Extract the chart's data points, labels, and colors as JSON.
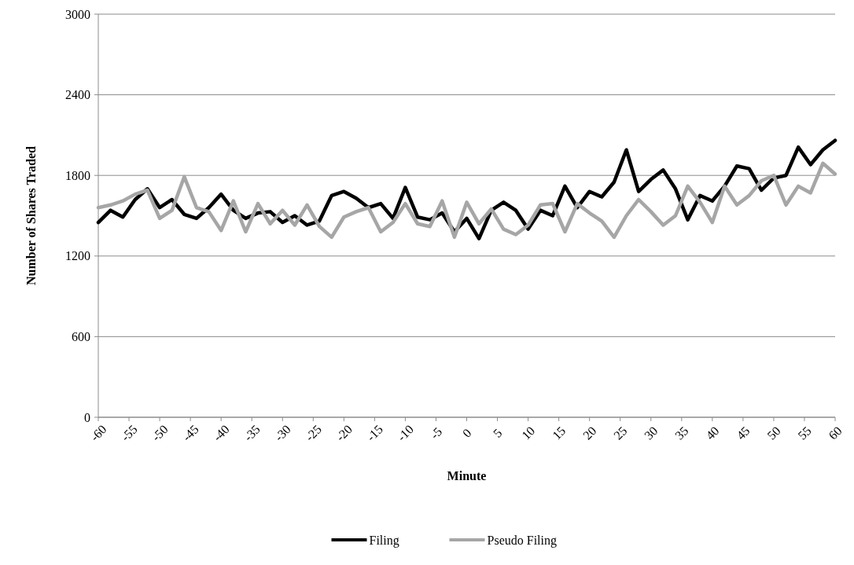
{
  "chart_data": {
    "type": "line",
    "xlabel": "Minute",
    "ylabel": "Number of Shares Traded",
    "x": [
      -60,
      -58,
      -56,
      -54,
      -52,
      -50,
      -48,
      -46,
      -44,
      -42,
      -40,
      -38,
      -36,
      -34,
      -32,
      -30,
      -28,
      -26,
      -24,
      -22,
      -20,
      -18,
      -16,
      -14,
      -12,
      -10,
      -8,
      -6,
      -4,
      -2,
      0,
      2,
      4,
      6,
      8,
      10,
      12,
      14,
      16,
      18,
      20,
      22,
      24,
      26,
      28,
      30,
      32,
      34,
      36,
      38,
      40,
      42,
      44,
      46,
      48,
      50,
      52,
      54,
      56,
      58,
      60
    ],
    "series": [
      {
        "name": "Filing",
        "color": "#000000",
        "values": [
          1450,
          1540,
          1490,
          1620,
          1700,
          1560,
          1620,
          1510,
          1480,
          1560,
          1660,
          1540,
          1480,
          1520,
          1530,
          1450,
          1500,
          1430,
          1460,
          1650,
          1680,
          1630,
          1560,
          1590,
          1480,
          1710,
          1490,
          1470,
          1520,
          1380,
          1480,
          1330,
          1540,
          1600,
          1540,
          1400,
          1540,
          1500,
          1720,
          1560,
          1680,
          1640,
          1750,
          1990,
          1680,
          1770,
          1840,
          1700,
          1470,
          1650,
          1610,
          1720,
          1870,
          1850,
          1690,
          1780,
          1800,
          2010,
          1880,
          1990,
          2060
        ]
      },
      {
        "name": "Pseudo Filing",
        "color": "#a6a6a6",
        "values": [
          1560,
          1580,
          1610,
          1660,
          1690,
          1480,
          1540,
          1790,
          1560,
          1530,
          1390,
          1610,
          1380,
          1590,
          1440,
          1540,
          1430,
          1580,
          1420,
          1340,
          1490,
          1530,
          1560,
          1380,
          1450,
          1590,
          1440,
          1420,
          1610,
          1340,
          1600,
          1440,
          1550,
          1400,
          1360,
          1430,
          1580,
          1590,
          1380,
          1590,
          1520,
          1460,
          1340,
          1500,
          1620,
          1530,
          1430,
          1500,
          1720,
          1600,
          1450,
          1720,
          1580,
          1650,
          1760,
          1800,
          1580,
          1720,
          1670,
          1890,
          1810
        ]
      }
    ],
    "xlim": [
      -60,
      60
    ],
    "xticks": [
      -60,
      -55,
      -50,
      -45,
      -40,
      -35,
      -30,
      -25,
      -20,
      -15,
      -10,
      -5,
      0,
      5,
      10,
      15,
      20,
      25,
      30,
      35,
      40,
      45,
      50,
      55,
      60
    ],
    "ylim": [
      0,
      3000
    ],
    "yticks": [
      0,
      600,
      1200,
      1800,
      2400,
      3000
    ],
    "grid": "y",
    "legend": "bottom",
    "marker": "none",
    "line_style": "solid"
  }
}
